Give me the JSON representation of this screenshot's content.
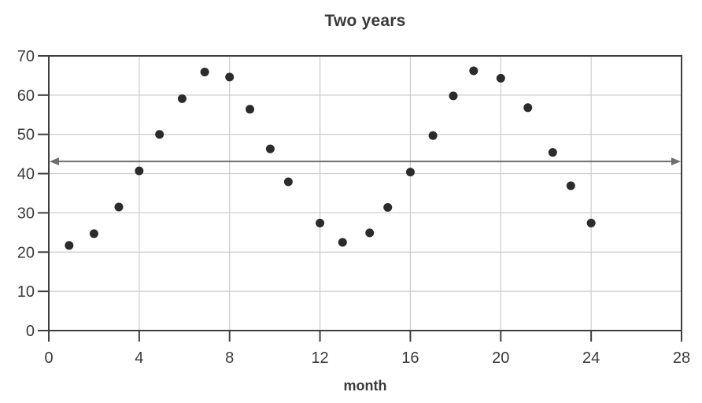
{
  "chart_data": {
    "type": "scatter",
    "title": "Two years",
    "xlabel": "month",
    "ylabel": "",
    "xlim": [
      0,
      28
    ],
    "ylim": [
      0,
      70
    ],
    "x_ticks": [
      0,
      4,
      8,
      12,
      16,
      20,
      24,
      28
    ],
    "y_ticks": [
      0,
      10,
      20,
      30,
      40,
      50,
      60,
      70
    ],
    "grid": true,
    "legend": false,
    "points_xy": [
      [
        0.9,
        21.7
      ],
      [
        2.0,
        24.7
      ],
      [
        3.1,
        31.5
      ],
      [
        4.0,
        40.7
      ],
      [
        4.9,
        50.0
      ],
      [
        5.9,
        59.1
      ],
      [
        6.9,
        65.9
      ],
      [
        8.0,
        64.6
      ],
      [
        8.9,
        56.4
      ],
      [
        9.8,
        46.3
      ],
      [
        10.6,
        37.9
      ],
      [
        12.0,
        27.4
      ],
      [
        13.0,
        22.5
      ],
      [
        14.2,
        24.9
      ],
      [
        15.0,
        31.4
      ],
      [
        16.0,
        40.4
      ],
      [
        17.0,
        49.7
      ],
      [
        17.9,
        59.8
      ],
      [
        18.8,
        66.2
      ],
      [
        20.0,
        64.3
      ],
      [
        21.2,
        56.8
      ],
      [
        22.3,
        45.4
      ],
      [
        23.1,
        36.9
      ],
      [
        24.0,
        27.4
      ]
    ],
    "reference_line": {
      "y": 43.1,
      "style": "horizontal-double-headed-arrow",
      "from_x": 0,
      "to_x": 28
    },
    "colors": {
      "point": "#2b2b2b",
      "frame": "#3f3f3f",
      "grid": "#cccccc",
      "arrow": "#6e6e6e",
      "text": "#3a3a3a",
      "background": "#ffffff"
    }
  }
}
